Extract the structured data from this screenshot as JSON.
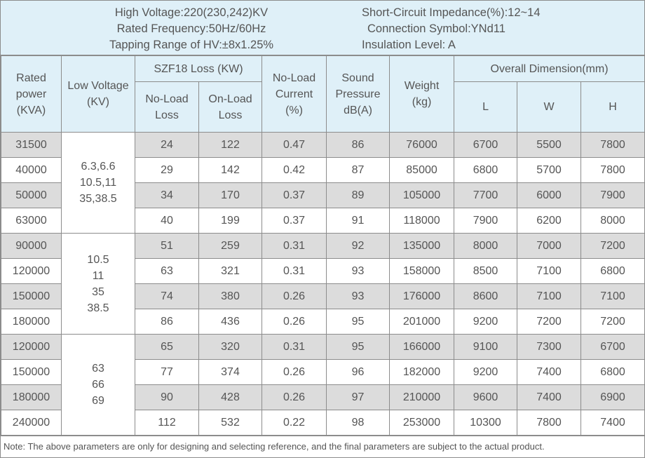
{
  "specs": {
    "left": [
      "High Voltage:220(230,242)KV",
      "Rated Frequency:50Hz/60Hz",
      "Tapping Range of HV:±8x1.25%"
    ],
    "right": [
      "Short-Circuit Impedance(%):12~14",
      "Connection Symbol:YNd11",
      "Insulation Level: A"
    ]
  },
  "headers": {
    "rated_power": "Rated\npower\n(KVA)",
    "low_voltage": "Low Voltage\n(KV)",
    "loss_group": "SZF18 Loss (KW)",
    "no_load_loss": "No-Load\nLoss",
    "on_load_loss": "On-Load\nLoss",
    "no_load_current": "No-Load\nCurrent\n(%)",
    "sound_pressure": "Sound\nPressure\ndB(A)",
    "weight": "Weight\n(kg)",
    "dimension_group": "Overall Dimension(mm)",
    "l": "L",
    "w": "W",
    "h": "H"
  },
  "low_voltage_groups": [
    "6.3,6.6\n10.5,11\n35,38.5",
    "10.5\n11\n35\n38.5",
    "63\n66\n69"
  ],
  "rows": [
    [
      "31500",
      "24",
      "122",
      "0.47",
      "86",
      "76000",
      "6700",
      "5500",
      "7800"
    ],
    [
      "40000",
      "29",
      "142",
      "0.42",
      "87",
      "85000",
      "6800",
      "5700",
      "7800"
    ],
    [
      "50000",
      "34",
      "170",
      "0.37",
      "89",
      "105000",
      "7700",
      "6000",
      "7900"
    ],
    [
      "63000",
      "40",
      "199",
      "0.37",
      "91",
      "118000",
      "7900",
      "6200",
      "8000"
    ],
    [
      "90000",
      "51",
      "259",
      "0.31",
      "92",
      "135000",
      "8000",
      "7000",
      "7200"
    ],
    [
      "120000",
      "63",
      "321",
      "0.31",
      "93",
      "158000",
      "8500",
      "7100",
      "6800"
    ],
    [
      "150000",
      "74",
      "380",
      "0.26",
      "93",
      "176000",
      "8600",
      "7100",
      "7100"
    ],
    [
      "180000",
      "86",
      "436",
      "0.26",
      "95",
      "201000",
      "9200",
      "7200",
      "7200"
    ],
    [
      "120000",
      "65",
      "320",
      "0.31",
      "95",
      "166000",
      "9100",
      "7300",
      "6700"
    ],
    [
      "150000",
      "77",
      "374",
      "0.26",
      "96",
      "182000",
      "9200",
      "7400",
      "6800"
    ],
    [
      "180000",
      "90",
      "428",
      "0.26",
      "97",
      "210000",
      "9600",
      "7400",
      "6900"
    ],
    [
      "240000",
      "112",
      "532",
      "0.22",
      "98",
      "253000",
      "10300",
      "7800",
      "7400"
    ]
  ],
  "note": "Note: The above parameters are only for designing and selecting  reference, and the final parameters are subject to the actual product.",
  "colors": {
    "header_bg": "#dff0f8",
    "shaded_row": "#dcdcdc",
    "border": "#8c8c8c",
    "text": "#555555"
  }
}
